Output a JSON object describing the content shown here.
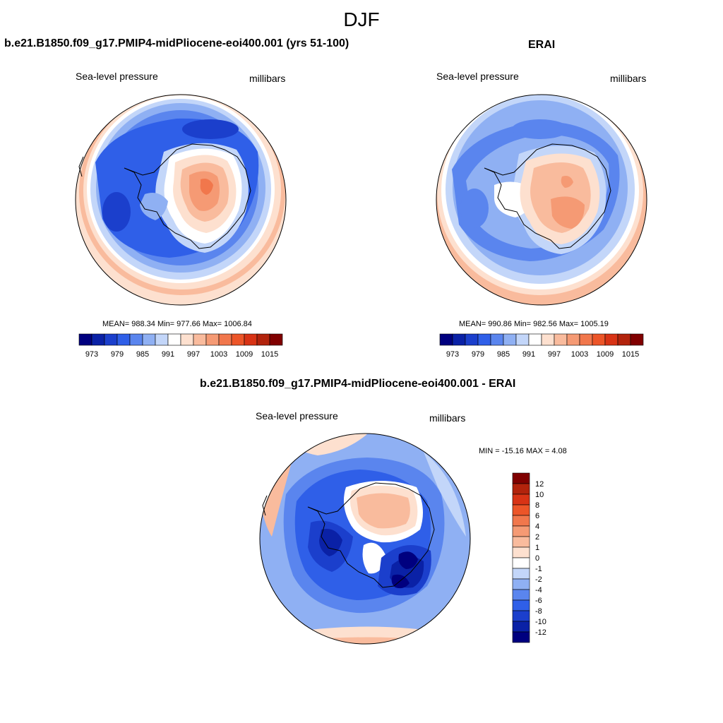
{
  "title": "DJF",
  "panels": [
    {
      "title": "b.e21.B1850.f09_g17.PMIP4-midPliocene-eoi400.001 (yrs 51-100)",
      "left_label": "Sea-level pressure",
      "right_label": "millibars",
      "stats": "MEAN= 988.34  Min= 977.66  Max= 1006.84",
      "colorbar": {
        "ticks": [
          "973",
          "979",
          "985",
          "991",
          "997",
          "1003",
          "1009",
          "1015"
        ],
        "colors": [
          "#00007f",
          "#0a21a6",
          "#1b3fcc",
          "#2f5fe8",
          "#5a85ee",
          "#8fb0f3",
          "#c3d6f9",
          "#ffffff",
          "#fde0cf",
          "#f9bb9d",
          "#f59a74",
          "#f1774c",
          "#ec5528",
          "#d83315",
          "#b2230c",
          "#800000"
        ]
      }
    },
    {
      "title": "ERAI",
      "left_label": "Sea-level pressure",
      "right_label": "millibars",
      "stats": "MEAN= 990.86  Min= 982.56  Max= 1005.19",
      "colorbar": {
        "ticks": [
          "973",
          "979",
          "985",
          "991",
          "997",
          "1003",
          "1009",
          "1015"
        ],
        "colors": [
          "#00007f",
          "#0a21a6",
          "#1b3fcc",
          "#2f5fe8",
          "#5a85ee",
          "#8fb0f3",
          "#c3d6f9",
          "#ffffff",
          "#fde0cf",
          "#f9bb9d",
          "#f59a74",
          "#f1774c",
          "#ec5528",
          "#d83315",
          "#b2230c",
          "#800000"
        ]
      }
    },
    {
      "title": "b.e21.B1850.f09_g17.PMIP4-midPliocene-eoi400.001 - ERAI",
      "left_label": "Sea-level pressure",
      "right_label": "millibars",
      "stats": "MIN = -15.16 MAX =   4.08",
      "colorbar": {
        "ticks": [
          "12",
          "10",
          "8",
          "6",
          "4",
          "2",
          "1",
          "0",
          "-1",
          "-2",
          "-4",
          "-6",
          "-8",
          "-10",
          "-12"
        ],
        "colors": [
          "#800000",
          "#b2230c",
          "#d83315",
          "#ec5528",
          "#f1774c",
          "#f59a74",
          "#f9bb9d",
          "#fde0cf",
          "#ffffff",
          "#c3d6f9",
          "#8fb0f3",
          "#5a85ee",
          "#2f5fe8",
          "#1b3fcc",
          "#0a21a6",
          "#00007f"
        ]
      }
    }
  ],
  "map_colors": {
    "ocean_deep": "#3f6fe6",
    "ocean_mid": "#6f95ee",
    "ocean_light": "#a9c3f5",
    "near_white": "#dde8fb",
    "warm_light": "#fde0cf",
    "warm_mid": "#f7b08e",
    "warm_strong": "#f28a62",
    "warm_core": "#ec6a3e",
    "cold_core": "#0a2ec4",
    "cold_mid": "#1f4bd9",
    "coast": "#000000"
  }
}
